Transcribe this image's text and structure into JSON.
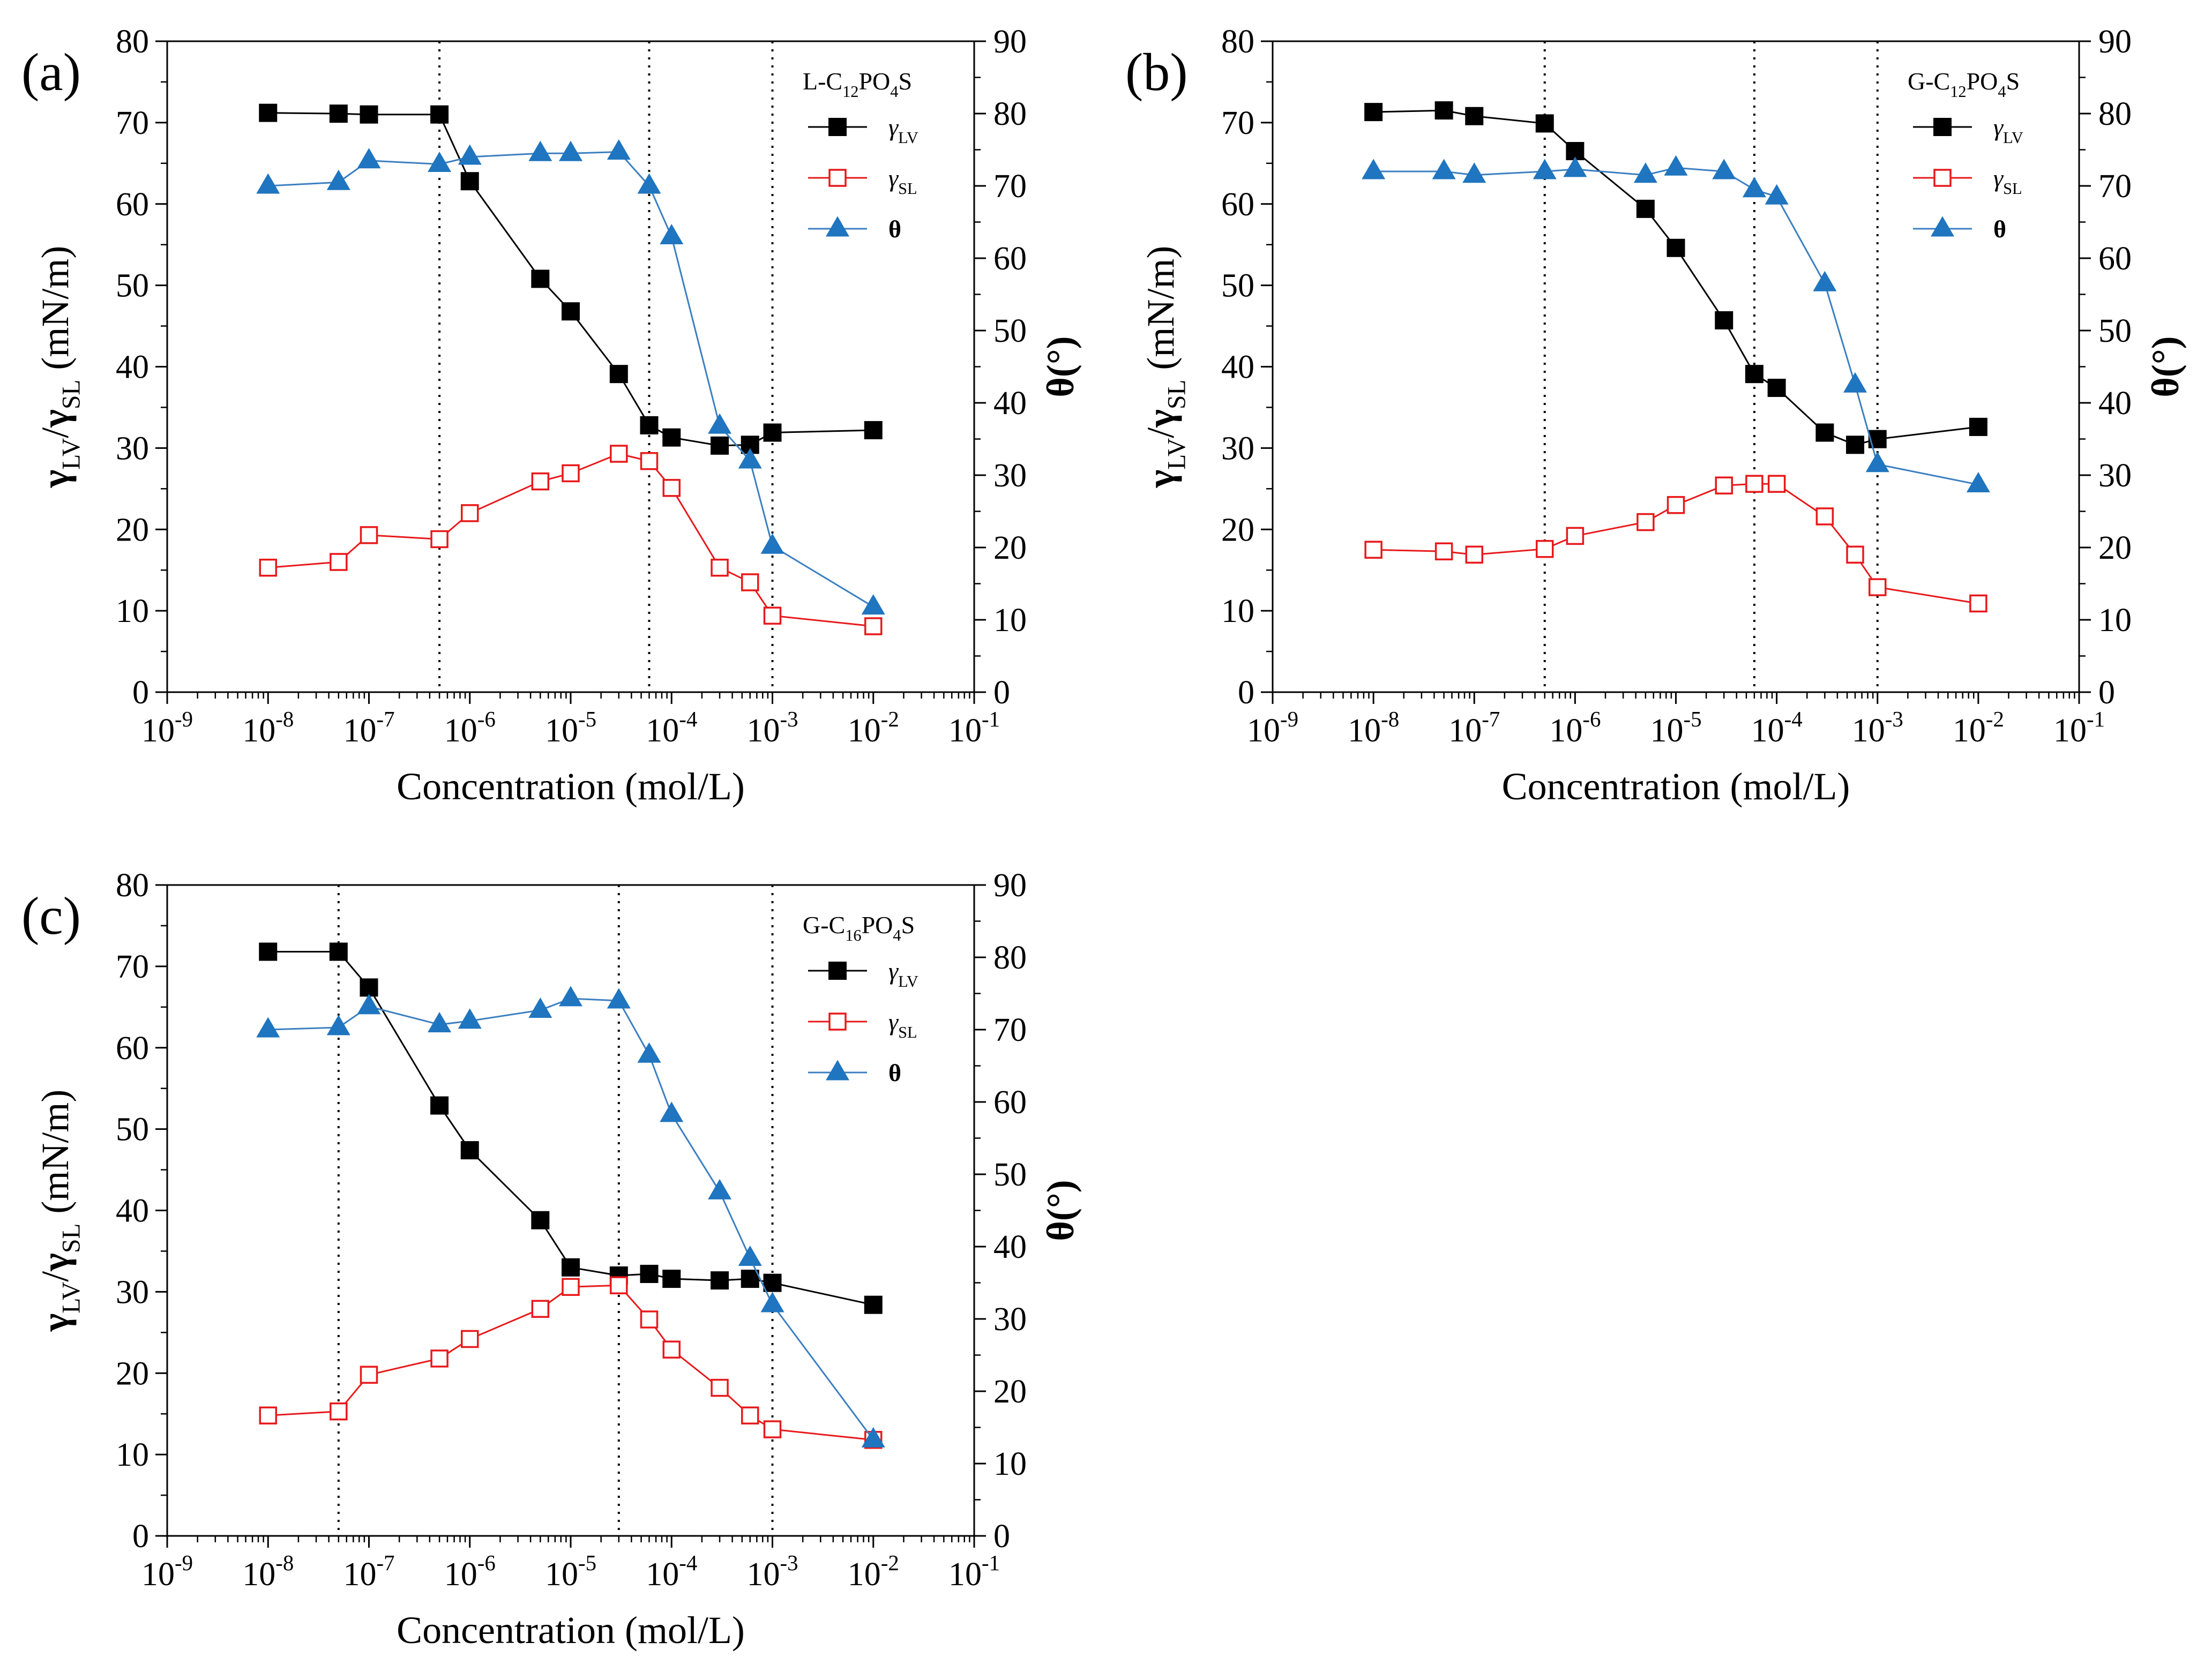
{
  "figure": {
    "colors": {
      "gamma_lv": "#000000",
      "gamma_sl": "#e8191b",
      "theta_line": "#3b7fc0",
      "theta_marker": "#1f75bf",
      "axis": "#000000"
    }
  },
  "chart_data": [
    {
      "panel_label": "(a)",
      "type": "line",
      "x_scale": "log",
      "xlabel": "Concentration (mol/L)",
      "ylabel_left": "γLV/γSL (mN/m)",
      "ylabel_right": "θ(°)",
      "xlim": [
        1e-09,
        0.1
      ],
      "ylim_left": [
        0,
        80
      ],
      "ylim_right": [
        0,
        90
      ],
      "x_ticks": [
        "10-9",
        "10-8",
        "10-7",
        "10-6",
        "10-5",
        "10-4",
        "10-3",
        "10-2",
        "10-1"
      ],
      "y_ticks_left": [
        "0",
        "10",
        "20",
        "30",
        "40",
        "50",
        "60",
        "70",
        "80"
      ],
      "y_ticks_right": [
        "0",
        "10",
        "20",
        "30",
        "40",
        "50",
        "60",
        "70",
        "80",
        "90"
      ],
      "legend_title": "L-C12PO4S",
      "vlines": [
        5e-07,
        6e-05,
        0.001
      ],
      "series": [
        {
          "name": "γLV",
          "axis": "left",
          "marker": "filled-square",
          "x": [
            1e-08,
            5e-08,
            1e-07,
            5e-07,
            1e-06,
            5e-06,
            1e-05,
            3e-05,
            6e-05,
            0.0001,
            0.0003,
            0.0006,
            0.001,
            0.01
          ],
          "y": [
            71.2,
            71.1,
            71.0,
            71.0,
            62.8,
            50.8,
            46.8,
            39.1,
            32.8,
            31.3,
            30.3,
            30.4,
            31.9,
            32.2
          ]
        },
        {
          "name": "γSL",
          "axis": "left",
          "marker": "open-square",
          "x": [
            1e-08,
            5e-08,
            1e-07,
            5e-07,
            1e-06,
            5e-06,
            1e-05,
            3e-05,
            6e-05,
            0.0001,
            0.0003,
            0.0006,
            0.001,
            0.01
          ],
          "y": [
            15.3,
            16.0,
            19.3,
            18.8,
            22.0,
            25.9,
            26.9,
            29.3,
            28.4,
            25.1,
            15.3,
            13.5,
            9.4,
            8.1
          ]
        },
        {
          "name": "θ",
          "axis": "right",
          "marker": "filled-triangle",
          "x": [
            1e-08,
            5e-08,
            1e-07,
            5e-07,
            1e-06,
            5e-06,
            1e-05,
            3e-05,
            6e-05,
            0.0001,
            0.0003,
            0.0006,
            0.001,
            0.01
          ],
          "y": [
            70.0,
            70.5,
            73.5,
            73.0,
            74.0,
            74.5,
            74.5,
            74.7,
            70.0,
            63.0,
            36.8,
            32.0,
            20.2,
            11.8
          ]
        }
      ]
    },
    {
      "panel_label": "(b)",
      "type": "line",
      "x_scale": "log",
      "xlabel": "Concentration (mol/L)",
      "ylabel_left": "γLV/γSL (mN/m)",
      "ylabel_right": "θ(°)",
      "xlim": [
        1e-09,
        0.1
      ],
      "ylim_left": [
        0,
        80
      ],
      "ylim_right": [
        0,
        90
      ],
      "x_ticks": [
        "10-9",
        "10-8",
        "10-7",
        "10-6",
        "10-5",
        "10-4",
        "10-3",
        "10-2",
        "10-1"
      ],
      "y_ticks_left": [
        "0",
        "10",
        "20",
        "30",
        "40",
        "50",
        "60",
        "70",
        "80"
      ],
      "y_ticks_right": [
        "0",
        "10",
        "20",
        "30",
        "40",
        "50",
        "60",
        "70",
        "80",
        "90"
      ],
      "legend_title": "G-C12PO4S",
      "vlines": [
        5e-07,
        6e-05,
        0.001
      ],
      "series": [
        {
          "name": "γLV",
          "axis": "left",
          "marker": "filled-square",
          "x": [
            1e-08,
            5e-08,
            1e-07,
            5e-07,
            1e-06,
            5e-06,
            1e-05,
            3e-05,
            6e-05,
            0.0001,
            0.0003,
            0.0006,
            0.001,
            0.01
          ],
          "y": [
            71.3,
            71.5,
            70.8,
            69.9,
            66.5,
            59.4,
            54.6,
            45.7,
            39.1,
            37.4,
            31.9,
            30.4,
            31.1,
            32.6
          ]
        },
        {
          "name": "γSL",
          "axis": "left",
          "marker": "open-square",
          "x": [
            1e-08,
            5e-08,
            1e-07,
            5e-07,
            1e-06,
            5e-06,
            1e-05,
            3e-05,
            6e-05,
            0.0001,
            0.0003,
            0.0006,
            0.001,
            0.01
          ],
          "y": [
            17.5,
            17.3,
            16.9,
            17.6,
            19.2,
            20.9,
            23.0,
            25.4,
            25.6,
            25.6,
            21.6,
            16.9,
            12.9,
            10.9
          ]
        },
        {
          "name": "θ",
          "axis": "right",
          "marker": "filled-triangle",
          "x": [
            1e-08,
            5e-08,
            1e-07,
            5e-07,
            1e-06,
            5e-06,
            1e-05,
            3e-05,
            6e-05,
            0.0001,
            0.0003,
            0.0006,
            0.001,
            0.01
          ],
          "y": [
            72.0,
            72.0,
            71.5,
            72.0,
            72.3,
            71.5,
            72.5,
            72.0,
            69.5,
            68.5,
            56.5,
            42.5,
            31.5,
            28.7
          ]
        }
      ]
    },
    {
      "panel_label": "(c)",
      "type": "line",
      "x_scale": "log",
      "xlabel": "Concentration (mol/L)",
      "ylabel_left": "γLV/γSL (mN/m)",
      "ylabel_right": "θ(°)",
      "xlim": [
        1e-09,
        0.1
      ],
      "ylim_left": [
        0,
        80
      ],
      "ylim_right": [
        0,
        90
      ],
      "x_ticks": [
        "10-9",
        "10-8",
        "10-7",
        "10-6",
        "10-5",
        "10-4",
        "10-3",
        "10-2",
        "10-1"
      ],
      "y_ticks_left": [
        "0",
        "10",
        "20",
        "30",
        "40",
        "50",
        "60",
        "70",
        "80"
      ],
      "y_ticks_right": [
        "0",
        "10",
        "20",
        "30",
        "40",
        "50",
        "60",
        "70",
        "80",
        "90"
      ],
      "legend_title": "G-C16PO4S",
      "vlines": [
        5e-08,
        3e-05,
        0.001
      ],
      "series": [
        {
          "name": "γLV",
          "axis": "left",
          "marker": "filled-square",
          "x": [
            1e-08,
            5e-08,
            1e-07,
            5e-07,
            1e-06,
            5e-06,
            1e-05,
            3e-05,
            6e-05,
            0.0001,
            0.0003,
            0.0006,
            0.001,
            0.01
          ],
          "y": [
            71.8,
            71.8,
            67.4,
            52.9,
            47.4,
            38.8,
            33.0,
            32.0,
            32.2,
            31.6,
            31.4,
            31.6,
            31.1,
            28.4
          ]
        },
        {
          "name": "γSL",
          "axis": "left",
          "marker": "open-square",
          "x": [
            1e-08,
            5e-08,
            1e-07,
            5e-07,
            1e-06,
            5e-06,
            1e-05,
            3e-05,
            6e-05,
            0.0001,
            0.0003,
            0.0006,
            0.001,
            0.01
          ],
          "y": [
            14.8,
            15.3,
            19.8,
            21.8,
            24.2,
            27.9,
            30.6,
            30.8,
            26.6,
            22.9,
            18.2,
            14.8,
            13.1,
            11.8
          ]
        },
        {
          "name": "θ",
          "axis": "right",
          "marker": "filled-triangle",
          "x": [
            1e-08,
            5e-08,
            1e-07,
            5e-07,
            1e-06,
            5e-06,
            1e-05,
            3e-05,
            6e-05,
            0.0001,
            0.0003,
            0.0006,
            0.001,
            0.01
          ],
          "y": [
            70.0,
            70.3,
            73.2,
            70.7,
            71.2,
            72.7,
            74.3,
            74.0,
            66.5,
            58.3,
            47.6,
            38.4,
            32.0,
            13.3
          ]
        }
      ]
    }
  ]
}
